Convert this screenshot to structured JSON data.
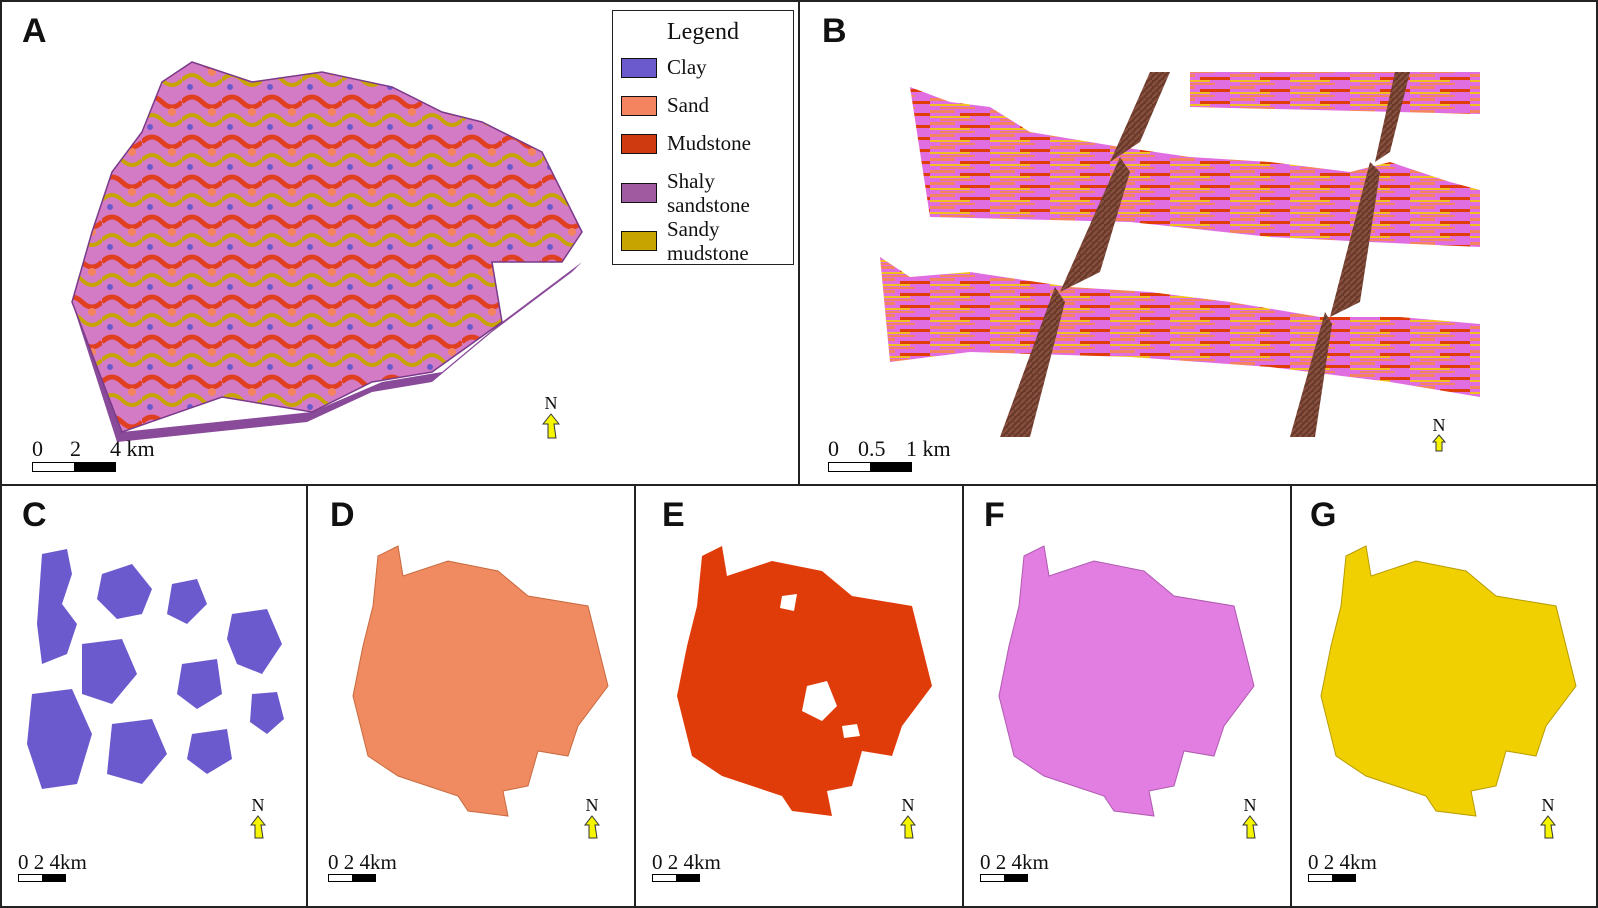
{
  "panels": {
    "a": {
      "label": "A",
      "scale": {
        "t0": "0",
        "t1": "2",
        "t2": "4 km"
      },
      "north": "N"
    },
    "b": {
      "label": "B",
      "scale": {
        "t0": "0",
        "t1": "0.5",
        "t2": "1 km"
      },
      "north": "N"
    },
    "c": {
      "label": "C",
      "scale": "0 2 4km",
      "north": "N"
    },
    "d": {
      "label": "D",
      "scale": "0 2 4km",
      "north": "N"
    },
    "e": {
      "label": "E",
      "scale": "0 2 4km",
      "north": "N"
    },
    "f": {
      "label": "F",
      "scale": "0 2 4km",
      "north": "N"
    },
    "g": {
      "label": "G",
      "scale": "0 2 4km",
      "north": "N"
    }
  },
  "legend": {
    "title": "Legend",
    "items": [
      {
        "label": "Clay",
        "color": "#6a5acd"
      },
      {
        "label": "Sand",
        "color": "#f4845f"
      },
      {
        "label": "Mudstone",
        "color": "#d03a10"
      },
      {
        "label": "Shaly sandstone",
        "color": "#a05aa0"
      },
      {
        "label": "Sandy mudstone",
        "color": "#c8a400"
      }
    ]
  },
  "colors": {
    "clay": "#6a5acd",
    "sand": "#f08a60",
    "mudstone": "#e03c0a",
    "shaly": "#e27de2",
    "sandy": "#f0d000",
    "north_arrow": "#f5f500"
  }
}
